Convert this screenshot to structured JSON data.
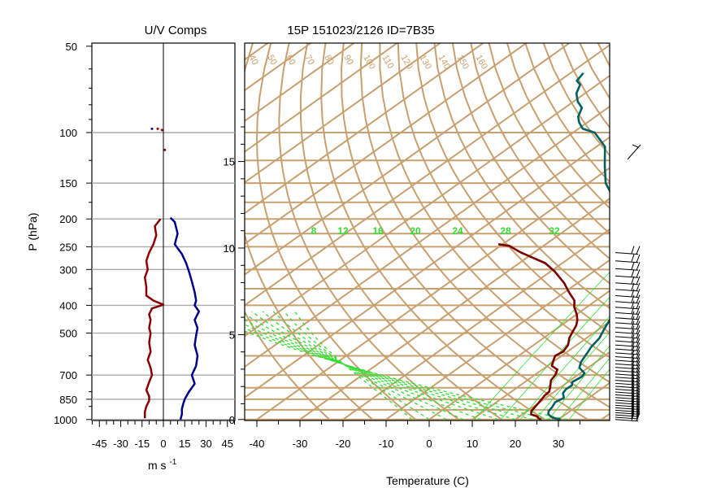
{
  "titles": {
    "left": "U/V Comps",
    "right": "15P 151023/2126 ID=7B35"
  },
  "axis_labels": {
    "pressure": "P (hPa)",
    "wind_unit": "m s",
    "wind_unit_exp": "-1",
    "temperature": "Temperature (C)"
  },
  "colors": {
    "isopleth": "#c8a070",
    "mixing_ratio": "#33dd33",
    "u_wind": "#8b0000",
    "v_wind": "#00008b",
    "temperature": "#006060",
    "dewpoint": "#7a0000",
    "gridline": "#aaaaaa"
  },
  "chart_data": [
    {
      "type": "line",
      "title": "U/V Comps",
      "xlabel": "m s-1",
      "ylabel": "P (hPa)",
      "y_scale": "log",
      "ylim": [
        1000,
        50
      ],
      "xlim": [
        -50,
        50
      ],
      "x_ticks": [
        "-45",
        "-30",
        "-15",
        "0",
        "15",
        "30",
        "45"
      ],
      "y_ticks": [
        "50",
        "100",
        "150",
        "200",
        "250",
        "300",
        "400",
        "500",
        "700",
        "850",
        "1000"
      ],
      "series": [
        {
          "name": "u",
          "color": "#8b0000",
          "points": [
            [
              -4,
              97
            ],
            [
              -1,
              98
            ],
            [
              1,
              115
            ],
            [
              -2,
              200
            ],
            [
              -6,
              212
            ],
            [
              -5,
              228
            ],
            [
              -7,
              245
            ],
            [
              -10,
              262
            ],
            [
              -12,
              280
            ],
            [
              -11,
              300
            ],
            [
              -13,
              320
            ],
            [
              -12,
              345
            ],
            [
              -12,
              370
            ],
            [
              -7,
              385
            ],
            [
              0,
              398
            ],
            [
              -8,
              410
            ],
            [
              -10,
              430
            ],
            [
              -9,
              450
            ],
            [
              -10,
              480
            ],
            [
              -9,
              500
            ],
            [
              -10,
              540
            ],
            [
              -9,
              580
            ],
            [
              -11,
              620
            ],
            [
              -9,
              660
            ],
            [
              -8,
              700
            ],
            [
              -10,
              740
            ],
            [
              -12,
              790
            ],
            [
              -10,
              830
            ],
            [
              -10,
              860
            ],
            [
              -12,
              900
            ],
            [
              -13,
              940
            ],
            [
              -13,
              990
            ]
          ]
        },
        {
          "name": "v",
          "color": "#00008b",
          "points": [
            [
              -8,
              97
            ],
            [
              5,
              198
            ],
            [
              8,
              205
            ],
            [
              10,
              225
            ],
            [
              8,
              245
            ],
            [
              13,
              265
            ],
            [
              16,
              285
            ],
            [
              18,
              305
            ],
            [
              20,
              330
            ],
            [
              22,
              360
            ],
            [
              23,
              385
            ],
            [
              22,
              400
            ],
            [
              25,
              420
            ],
            [
              22,
              450
            ],
            [
              24,
              480
            ],
            [
              23,
              510
            ],
            [
              22,
              550
            ],
            [
              24,
              600
            ],
            [
              23,
              650
            ],
            [
              20,
              700
            ],
            [
              22,
              750
            ],
            [
              18,
              800
            ],
            [
              15,
              850
            ],
            [
              14,
              880
            ],
            [
              13,
              920
            ],
            [
              13,
              960
            ],
            [
              12,
              1000
            ]
          ]
        }
      ]
    },
    {
      "type": "line",
      "title": "15P 151023/2126 ID=7B35",
      "xlabel": "Temperature (C)",
      "ylabel": "",
      "y_scale": "log",
      "ylim": [
        1000,
        50
      ],
      "xlim": [
        -40,
        40
      ],
      "x_ticks": [
        "-40",
        "-30",
        "-20",
        "-10",
        "0",
        "10",
        "20",
        "30"
      ],
      "height_ticks_km": [
        "0",
        "5",
        "10",
        "15"
      ],
      "mixing_ratio_labels": [
        "8",
        "12",
        "16",
        "20",
        "24",
        "28",
        "32"
      ],
      "theta_labels": [
        "40",
        "50",
        "60",
        "70",
        "80",
        "90",
        "100",
        "110",
        "120",
        "130",
        "140",
        "150",
        "160"
      ],
      "series": [
        {
          "name": "temperature",
          "color": "#006060",
          "points": [
            [
              30.5,
              1000
            ],
            [
              28,
              985
            ],
            [
              26,
              960
            ],
            [
              25,
              935
            ],
            [
              24.5,
              905
            ],
            [
              23.6,
              870
            ],
            [
              24.2,
              840
            ],
            [
              22.5,
              810
            ],
            [
              21.9,
              785
            ],
            [
              22,
              760
            ],
            [
              21,
              740
            ],
            [
              21.5,
              710
            ],
            [
              21,
              690
            ],
            [
              18,
              660
            ],
            [
              16.5,
              630
            ],
            [
              15.5,
              600
            ],
            [
              14.8,
              580
            ],
            [
              14,
              560
            ],
            [
              13,
              520
            ],
            [
              12,
              500
            ],
            [
              10.5,
              470
            ],
            [
              8.5,
              430
            ],
            [
              6,
              400
            ],
            [
              4,
              380
            ],
            [
              2,
              360
            ],
            [
              0,
              340
            ],
            [
              -3,
              315
            ],
            [
              -6,
              290
            ],
            [
              -10,
              265
            ],
            [
              -13,
              245
            ],
            [
              -17,
              225
            ],
            [
              -20,
              205
            ],
            [
              -26,
              185
            ],
            [
              -29,
              170
            ],
            [
              -36,
              150
            ],
            [
              -42,
              130
            ],
            [
              -48,
              112
            ],
            [
              -55,
              100
            ],
            [
              -59,
              97
            ],
            [
              -62,
              92
            ],
            [
              -64,
              88
            ],
            [
              -66,
              82
            ],
            [
              -69,
              78
            ],
            [
              -72,
              73
            ],
            [
              -74,
              68
            ],
            [
              -76,
              66
            ],
            [
              -77,
              62
            ]
          ]
        },
        {
          "name": "dewpoint",
          "color": "#7a0000",
          "points": [
            [
              26,
              1000
            ],
            [
              25,
              990
            ],
            [
              24,
              975
            ],
            [
              22,
              960
            ],
            [
              21,
              935
            ],
            [
              20.5,
              905
            ],
            [
              20,
              875
            ],
            [
              19.5,
              850
            ],
            [
              19,
              825
            ],
            [
              18.8,
              800
            ],
            [
              17.5,
              770
            ],
            [
              15.5,
              730
            ],
            [
              14.8,
              700
            ],
            [
              13.5,
              670
            ],
            [
              11,
              650
            ],
            [
              9.5,
              620
            ],
            [
              8.5,
              600
            ],
            [
              9,
              580
            ],
            [
              8,
              550
            ],
            [
              6,
              520
            ],
            [
              5,
              500
            ],
            [
              3.5,
              470
            ],
            [
              2,
              450
            ],
            [
              0,
              430
            ],
            [
              -3,
              405
            ],
            [
              -5,
              385
            ],
            [
              -9,
              360
            ],
            [
              -13,
              335
            ],
            [
              -19,
              305
            ],
            [
              -24,
              285
            ],
            [
              -33,
              262
            ],
            [
              -38,
              248
            ],
            [
              -41,
              245
            ]
          ]
        }
      ]
    }
  ]
}
